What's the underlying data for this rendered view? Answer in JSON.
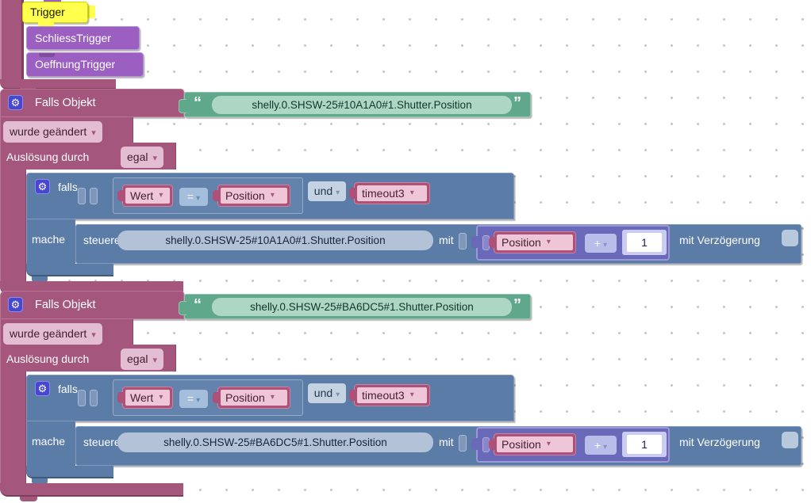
{
  "palette": {
    "trigger_purple": "#9a5fc0",
    "selected_yellow": "#ffff4d",
    "rule_mauve": "#a5567d",
    "mauve_field_pink": "#e3bed2",
    "string_green": "#5fa88c",
    "string_field_green": "#aed7c3",
    "logic_blue": "#5b7ca6",
    "logic_field_blue": "#b4c2d8",
    "variable_pink": "#ad5178",
    "variable_field_pink": "#eec6d8",
    "math_indigo": "#6a68b9",
    "gear_blue": "#4747cf",
    "checkbox_gray_blue": "#b9c9dd"
  },
  "icons": {
    "gear": "⚙",
    "dropdown_arrow": "▾",
    "quote_open": "“",
    "quote_close": "”"
  },
  "trigger_stack": {
    "selected_label": "Trigger",
    "items": [
      {
        "label": "SchliessTrigger"
      },
      {
        "label": "OeffnungTrigger"
      }
    ]
  },
  "rules": [
    {
      "header_label": "Falls Objekt",
      "oid": "shelly.0.SHSW-25#10A1A0#1.Shutter.Position",
      "change_mode": "wurde geändert",
      "trigger_label": "Auslösung durch",
      "trigger_mode": "egal",
      "falls_label": "falls",
      "condition": {
        "left": "Wert",
        "op": "=",
        "right": "Position",
        "logic": "und",
        "extra": "timeout3"
      },
      "mache_label": "mache",
      "steuere_label": "steuere",
      "target_oid": "shelly.0.SHSW-25#10A1A0#1.Shutter.Position",
      "mit_label": "mit",
      "math": {
        "variable": "Position",
        "op": "+",
        "value": "1"
      },
      "delay_label": "mit Verzögerung"
    },
    {
      "header_label": "Falls Objekt",
      "oid": "shelly.0.SHSW-25#BA6DC5#1.Shutter.Position",
      "change_mode": "wurde geändert",
      "trigger_label": "Auslösung durch",
      "trigger_mode": "egal",
      "falls_label": "falls",
      "condition": {
        "left": "Wert",
        "op": "=",
        "right": "Position",
        "logic": "und",
        "extra": "timeout3"
      },
      "mache_label": "mache",
      "steuere_label": "steuere",
      "target_oid": "shelly.0.SHSW-25#BA6DC5#1.Shutter.Position",
      "mit_label": "mit",
      "math": {
        "variable": "Position",
        "op": "+",
        "value": "1"
      },
      "delay_label": "mit Verzögerung"
    }
  ]
}
